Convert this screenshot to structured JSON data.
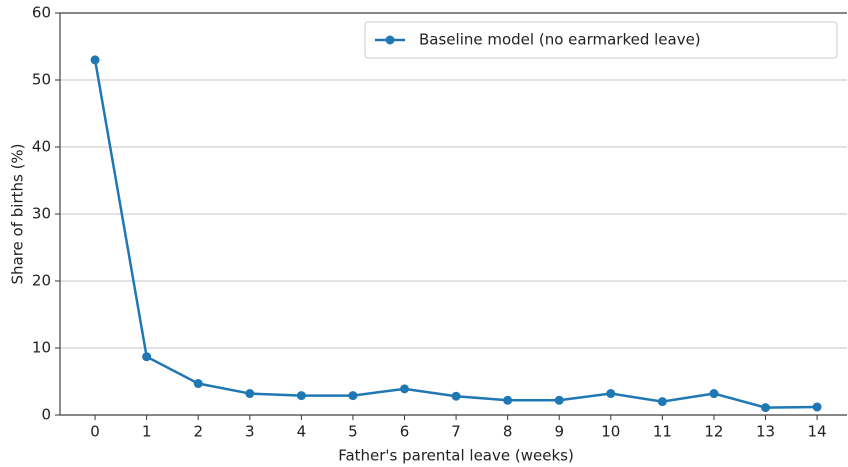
{
  "chart_data": {
    "type": "line",
    "xlabel": "Father's parental leave (weeks)",
    "ylabel": "Share of births (%)",
    "x": [
      0,
      1,
      2,
      3,
      4,
      5,
      6,
      7,
      8,
      9,
      10,
      11,
      12,
      13,
      14
    ],
    "series": [
      {
        "name": "Baseline model (no earmarked leave)",
        "color": "#1f77b4",
        "values": [
          53,
          8.7,
          4.7,
          3.2,
          2.9,
          2.9,
          3.9,
          2.8,
          2.2,
          2.2,
          3.2,
          2.0,
          3.2,
          1.1,
          1.2
        ]
      }
    ],
    "xlim": [
      -0.68,
      14.58
    ],
    "xticks": [
      0,
      1,
      2,
      3,
      4,
      5,
      6,
      7,
      8,
      9,
      10,
      11,
      12,
      13,
      14
    ],
    "ylim": [
      0,
      60
    ],
    "yticks": [
      0,
      10,
      20,
      30,
      40,
      50,
      60
    ],
    "grid": true,
    "legend": "upper right"
  }
}
